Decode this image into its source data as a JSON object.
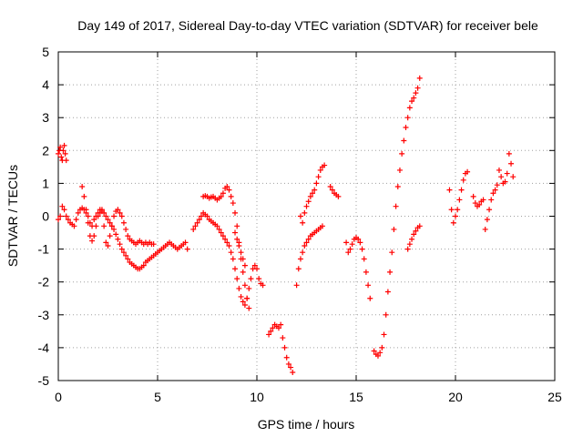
{
  "chart_data": {
    "type": "scatter",
    "title": "Day 149 of 2017, Sidereal Day-to-day VTEC variation (SDTVAR) for receiver bele",
    "xlabel": "GPS time / hours",
    "ylabel": "SDTVAR / TECUs",
    "xlim": [
      0,
      25
    ],
    "ylim": [
      -5,
      5
    ],
    "xticks": [
      0,
      5,
      10,
      15,
      20,
      25
    ],
    "yticks": [
      -5,
      -4,
      -3,
      -2,
      -1,
      0,
      1,
      2,
      3,
      4,
      5
    ],
    "grid": true,
    "marker": "+",
    "color": "#ff0000",
    "series": [
      {
        "name": "t1",
        "x": [
          0.0,
          0.05,
          0.1,
          0.15,
          0.2,
          0.25,
          0.3,
          0.35,
          0.4
        ],
        "y": [
          1.9,
          2.0,
          2.1,
          1.8,
          1.7,
          2.0,
          2.15,
          1.9,
          1.7
        ]
      },
      {
        "name": "t2",
        "x": [
          0.0,
          0.1,
          0.2,
          0.3,
          0.4,
          0.5,
          0.6,
          0.7,
          0.8,
          0.9,
          1.0,
          1.1,
          1.2,
          1.3,
          1.4,
          1.5,
          1.6,
          1.7,
          1.8,
          1.9,
          2.0,
          2.1,
          2.2,
          2.3,
          2.4,
          2.5,
          2.6,
          2.7,
          2.8,
          2.9,
          3.0,
          3.1,
          3.2,
          3.3,
          3.4,
          3.5,
          3.6,
          3.7,
          3.8,
          3.9,
          4.0,
          4.1,
          4.2,
          4.3,
          4.4,
          4.5,
          4.6,
          4.7,
          4.8,
          4.9,
          5.0,
          5.1,
          5.2,
          5.3,
          5.4,
          5.5,
          5.6,
          5.7,
          5.8,
          5.9,
          6.0,
          6.1,
          6.2,
          6.3,
          6.4,
          6.5
        ],
        "y": [
          -0.1,
          0.0,
          0.3,
          0.2,
          0.0,
          -0.1,
          -0.2,
          -0.25,
          -0.3,
          -0.1,
          0.1,
          0.2,
          0.25,
          0.2,
          0.1,
          0.0,
          -0.2,
          -0.3,
          -0.1,
          0.0,
          0.1,
          0.2,
          0.2,
          0.1,
          0.0,
          -0.1,
          -0.2,
          -0.3,
          -0.4,
          -0.55,
          -0.7,
          -0.85,
          -1.0,
          -1.1,
          -1.2,
          -1.3,
          -1.4,
          -1.45,
          -1.5,
          -1.55,
          -1.6,
          -1.6,
          -1.55,
          -1.5,
          -1.4,
          -1.35,
          -1.3,
          -1.25,
          -1.2,
          -1.15,
          -1.1,
          -1.05,
          -1.0,
          -0.95,
          -0.9,
          -0.85,
          -0.8,
          -0.85,
          -0.9,
          -0.95,
          -1.0,
          -0.95,
          -0.9,
          -0.85,
          -0.8,
          -1.0
        ]
      },
      {
        "name": "t3",
        "x": [
          1.2,
          1.3,
          1.4,
          1.5,
          1.6,
          1.7,
          1.8,
          1.9,
          2.0,
          2.1,
          2.2,
          2.3,
          2.4,
          2.5,
          2.6,
          2.7,
          2.8,
          2.9,
          3.0,
          3.1,
          3.2,
          3.3,
          3.4,
          3.5,
          3.6,
          3.7,
          3.8,
          3.9,
          4.0,
          4.1,
          4.2,
          4.3,
          4.4,
          4.5,
          4.6,
          4.7,
          4.8
        ],
        "y": [
          0.9,
          0.6,
          0.2,
          -0.2,
          -0.6,
          -0.75,
          -0.6,
          -0.3,
          0.0,
          0.1,
          0.15,
          -0.3,
          -0.8,
          -0.9,
          -0.6,
          -0.3,
          0.0,
          0.15,
          0.2,
          0.1,
          0.0,
          -0.2,
          -0.4,
          -0.6,
          -0.7,
          -0.75,
          -0.8,
          -0.85,
          -0.8,
          -0.75,
          -0.8,
          -0.85,
          -0.8,
          -0.85,
          -0.8,
          -0.85,
          -0.85
        ]
      },
      {
        "name": "t4",
        "x": [
          6.8,
          6.9,
          7.0,
          7.1,
          7.2,
          7.3,
          7.4,
          7.5,
          7.6,
          7.7,
          7.8,
          7.9,
          8.0,
          8.1,
          8.2,
          8.3,
          8.4,
          8.5,
          8.6,
          8.7,
          8.8,
          8.9,
          9.0,
          9.1,
          9.2,
          9.3,
          9.4,
          9.5,
          9.6,
          9.7,
          9.8,
          9.9,
          10.0,
          10.1,
          10.2,
          10.3
        ],
        "y": [
          -0.4,
          -0.3,
          -0.2,
          -0.1,
          0.0,
          0.1,
          0.05,
          0.0,
          -0.1,
          -0.15,
          -0.2,
          -0.25,
          -0.3,
          -0.4,
          -0.5,
          -0.6,
          -0.7,
          -0.8,
          -0.9,
          -1.1,
          -1.3,
          -1.6,
          -1.9,
          -2.2,
          -2.45,
          -2.6,
          -2.7,
          -2.5,
          -2.2,
          -1.9,
          -1.6,
          -1.5,
          -1.6,
          -1.9,
          -2.05,
          -2.1
        ]
      },
      {
        "name": "t5",
        "x": [
          7.3,
          7.4,
          7.5,
          7.6,
          7.7,
          7.8,
          7.9,
          8.0,
          8.1,
          8.2,
          8.3,
          8.4,
          8.5,
          8.6,
          8.7,
          8.8,
          8.9,
          9.0,
          9.1,
          9.2,
          9.3,
          9.4,
          9.5,
          9.6
        ],
        "y": [
          0.6,
          0.62,
          0.6,
          0.55,
          0.58,
          0.6,
          0.55,
          0.5,
          0.55,
          0.6,
          0.7,
          0.85,
          0.9,
          0.8,
          0.6,
          0.4,
          0.1,
          -0.3,
          -0.8,
          -1.3,
          -1.7,
          -2.1,
          -2.5,
          -2.8
        ]
      },
      {
        "name": "t6",
        "x": [
          8.9,
          9.0,
          9.1,
          9.2,
          9.3,
          9.4
        ],
        "y": [
          -0.5,
          -0.7,
          -0.9,
          -1.1,
          -1.3,
          -1.5
        ]
      },
      {
        "name": "t7",
        "x": [
          10.6,
          10.7,
          10.8,
          10.9,
          11.0,
          11.1,
          11.2,
          11.3,
          11.4,
          11.5,
          11.6,
          11.7,
          11.8
        ],
        "y": [
          -3.6,
          -3.5,
          -3.4,
          -3.3,
          -3.35,
          -3.4,
          -3.3,
          -3.7,
          -4.0,
          -4.3,
          -4.5,
          -4.6,
          -4.75
        ]
      },
      {
        "name": "t8",
        "x": [
          12.0,
          12.1,
          12.2,
          12.3,
          12.4,
          12.5,
          12.6,
          12.7,
          12.8,
          12.9,
          13.0,
          13.1,
          13.2,
          13.3
        ],
        "y": [
          -2.1,
          -1.6,
          -1.3,
          -1.1,
          -0.9,
          -0.8,
          -0.7,
          -0.6,
          -0.55,
          -0.5,
          -0.45,
          -0.4,
          -0.35,
          -0.3
        ]
      },
      {
        "name": "t9",
        "x": [
          12.2,
          12.3,
          12.4,
          12.5,
          12.6,
          12.7,
          12.8,
          12.9,
          13.0,
          13.1,
          13.2,
          13.3,
          13.4
        ],
        "y": [
          0.0,
          -0.2,
          0.1,
          0.3,
          0.45,
          0.6,
          0.7,
          0.8,
          1.0,
          1.2,
          1.4,
          1.5,
          1.55
        ]
      },
      {
        "name": "t10",
        "x": [
          13.7,
          13.8,
          13.9,
          14.0,
          14.1
        ],
        "y": [
          0.9,
          0.8,
          0.7,
          0.65,
          0.6
        ]
      },
      {
        "name": "t11",
        "x": [
          14.5,
          14.6,
          14.7,
          14.8,
          14.9,
          15.0,
          15.1,
          15.2,
          15.3,
          15.4,
          15.5,
          15.6,
          15.7
        ],
        "y": [
          -0.8,
          -1.1,
          -1.0,
          -0.85,
          -0.7,
          -0.65,
          -0.7,
          -0.8,
          -1.0,
          -1.3,
          -1.7,
          -2.1,
          -2.5
        ]
      },
      {
        "name": "t12",
        "x": [
          15.9,
          16.0,
          16.1,
          16.2,
          16.3,
          16.4,
          16.5,
          16.6,
          16.7,
          16.8,
          16.9,
          17.0,
          17.1,
          17.2,
          17.3,
          17.4,
          17.5,
          17.6,
          17.7,
          17.8,
          17.9,
          18.0,
          18.1,
          18.2
        ],
        "y": [
          -4.1,
          -4.2,
          -4.25,
          -4.15,
          -4.0,
          -3.6,
          -3.0,
          -2.3,
          -1.7,
          -1.1,
          -0.4,
          0.3,
          0.9,
          1.4,
          1.9,
          2.3,
          2.7,
          3.0,
          3.3,
          3.5,
          3.6,
          3.75,
          3.9,
          4.2
        ]
      },
      {
        "name": "t13",
        "x": [
          17.6,
          17.7,
          17.8,
          17.9,
          18.0,
          18.1,
          18.2
        ],
        "y": [
          -1.0,
          -0.85,
          -0.7,
          -0.55,
          -0.45,
          -0.35,
          -0.3
        ]
      },
      {
        "name": "t14",
        "x": [
          19.7,
          19.8,
          19.9,
          20.0,
          20.1,
          20.2,
          20.3,
          20.4,
          20.5,
          20.6
        ],
        "y": [
          0.8,
          0.2,
          -0.2,
          0.0,
          0.2,
          0.5,
          0.8,
          1.1,
          1.3,
          1.35
        ]
      },
      {
        "name": "t15",
        "x": [
          20.9,
          21.0,
          21.1,
          21.2,
          21.3,
          21.4,
          21.5,
          21.6,
          21.7,
          21.8,
          21.9,
          22.0,
          22.1,
          22.2,
          22.3,
          22.4,
          22.5,
          22.6,
          22.7,
          22.8,
          22.9
        ],
        "y": [
          0.6,
          0.4,
          0.3,
          0.35,
          0.45,
          0.5,
          -0.4,
          -0.1,
          0.2,
          0.5,
          0.7,
          0.8,
          0.95,
          1.4,
          1.2,
          1.0,
          1.05,
          1.3,
          1.9,
          1.6,
          1.2
        ]
      }
    ]
  }
}
